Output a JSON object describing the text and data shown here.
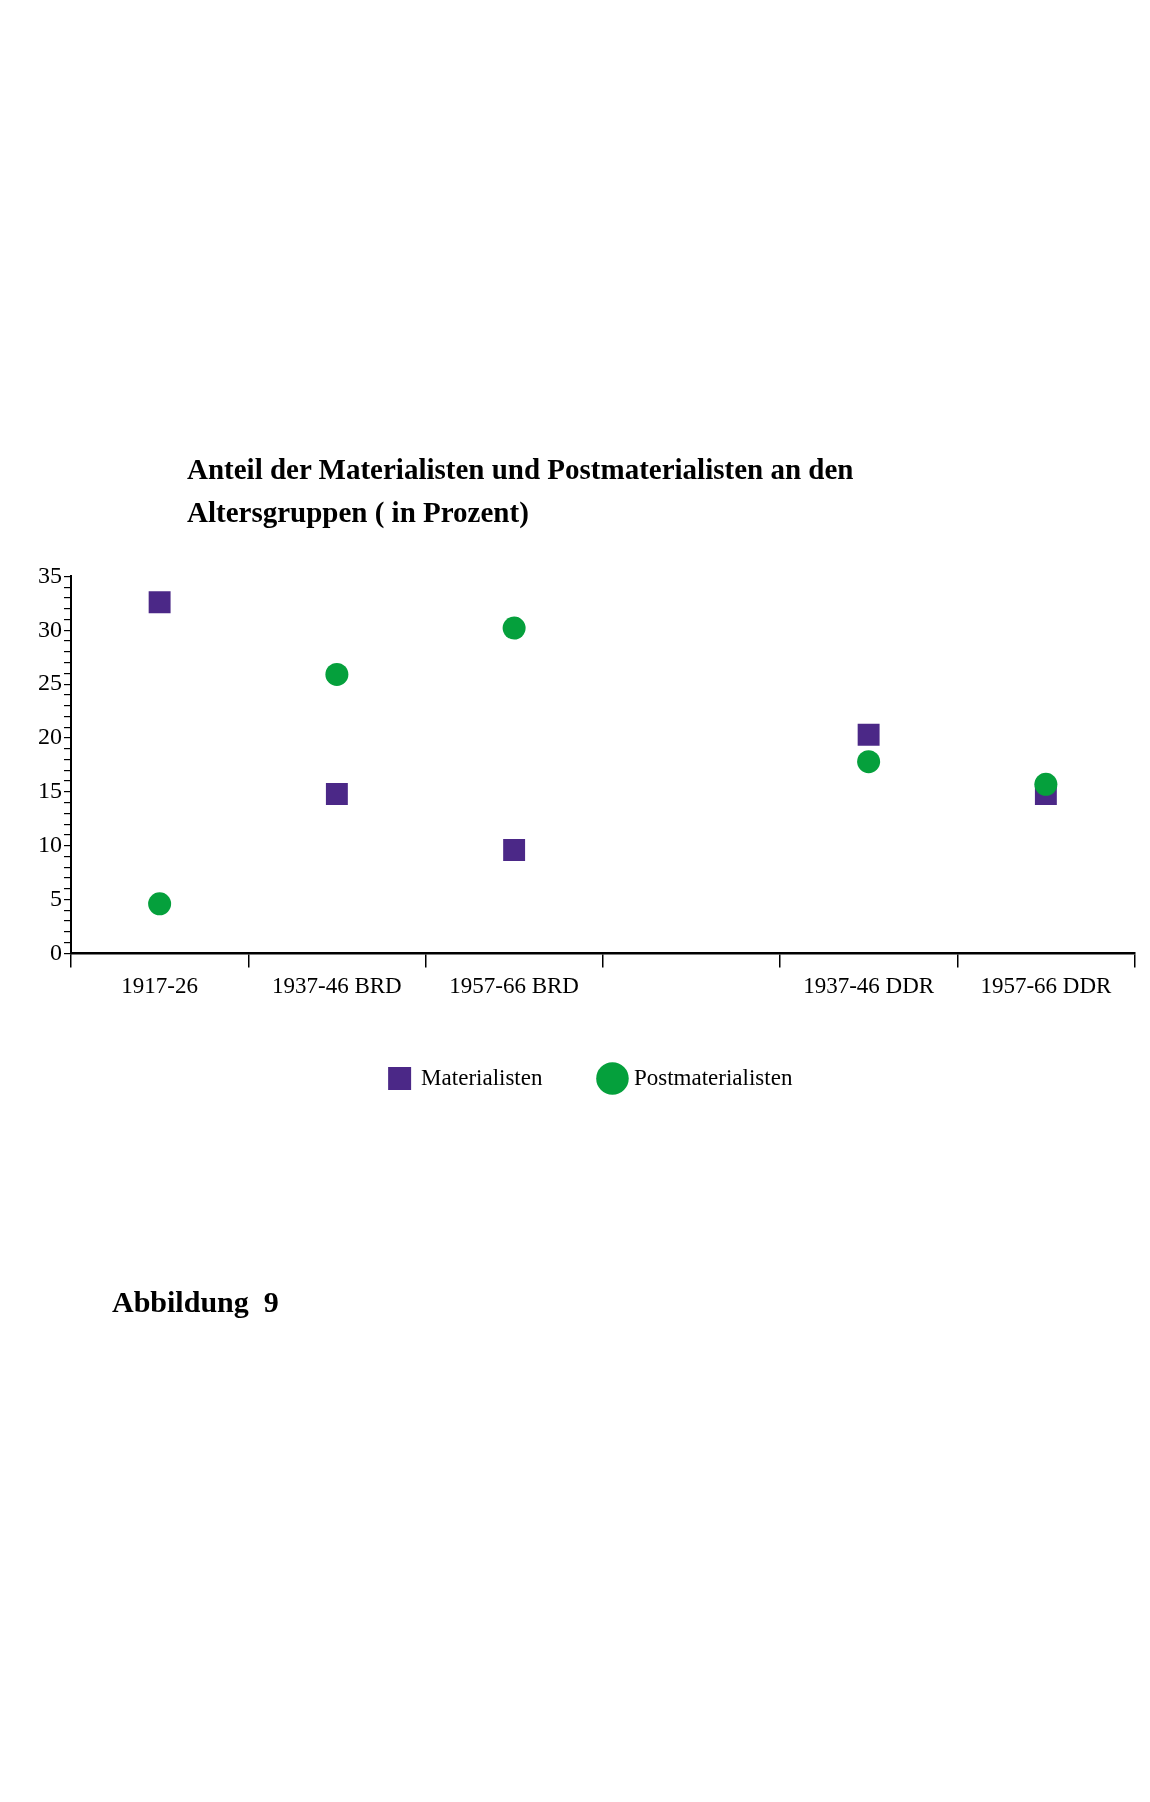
{
  "chart_data": {
    "type": "scatter",
    "title": "Anteil der Materialisten und Postmaterialisten an den Altersgruppen ( in Prozent)",
    "categories": [
      "1917-26",
      "1937-46 BRD",
      "1957-66 BRD",
      null,
      "1937-46 DDR",
      "1957-66 DDR"
    ],
    "series": [
      {
        "name": "Materialisten",
        "color": "#4b2887",
        "marker": "square",
        "values": [
          32.6,
          14.8,
          9.6,
          null,
          20.3,
          14.8
        ]
      },
      {
        "name": "Postmaterialisten",
        "color": "#05a03c",
        "marker": "circle",
        "values": [
          4.6,
          25.9,
          30.2,
          null,
          17.8,
          15.7
        ]
      }
    ],
    "ylim": [
      0,
      35
    ],
    "yticks": [
      0,
      {
        "value": 1,
        "label": null
      },
      {
        "value": 2,
        "label": null
      },
      {
        "value": 3,
        "label": null
      },
      {
        "value": 4,
        "label": null
      },
      5,
      {
        "value": 6,
        "label": null
      },
      {
        "value": 7,
        "label": null
      },
      {
        "value": 8,
        "label": null
      },
      {
        "value": 9,
        "label": null
      },
      10,
      {
        "value": 11,
        "label": null
      },
      {
        "value": 12,
        "label": null
      },
      {
        "value": 13,
        "label": null
      },
      {
        "value": 14,
        "label": null
      },
      15,
      {
        "value": 16,
        "label": null
      },
      {
        "value": 17,
        "label": null
      },
      {
        "value": 18,
        "label": null
      },
      {
        "value": 19,
        "label": null
      },
      20,
      {
        "value": 21,
        "label": null
      },
      {
        "value": 22,
        "label": null
      },
      {
        "value": 23,
        "label": null
      },
      {
        "value": 24,
        "label": null
      },
      25,
      {
        "value": 26,
        "label": null
      },
      {
        "value": 27,
        "label": null
      },
      {
        "value": 28,
        "label": null
      },
      {
        "value": 29,
        "label": null
      },
      30,
      {
        "value": 31,
        "label": null
      },
      {
        "value": 32,
        "label": null
      },
      {
        "value": 33,
        "label": null
      },
      {
        "value": 34,
        "label": null
      },
      35
    ],
    "grid": false,
    "legend": "bottom",
    "annotations": [
      "Abbildung  9"
    ]
  }
}
